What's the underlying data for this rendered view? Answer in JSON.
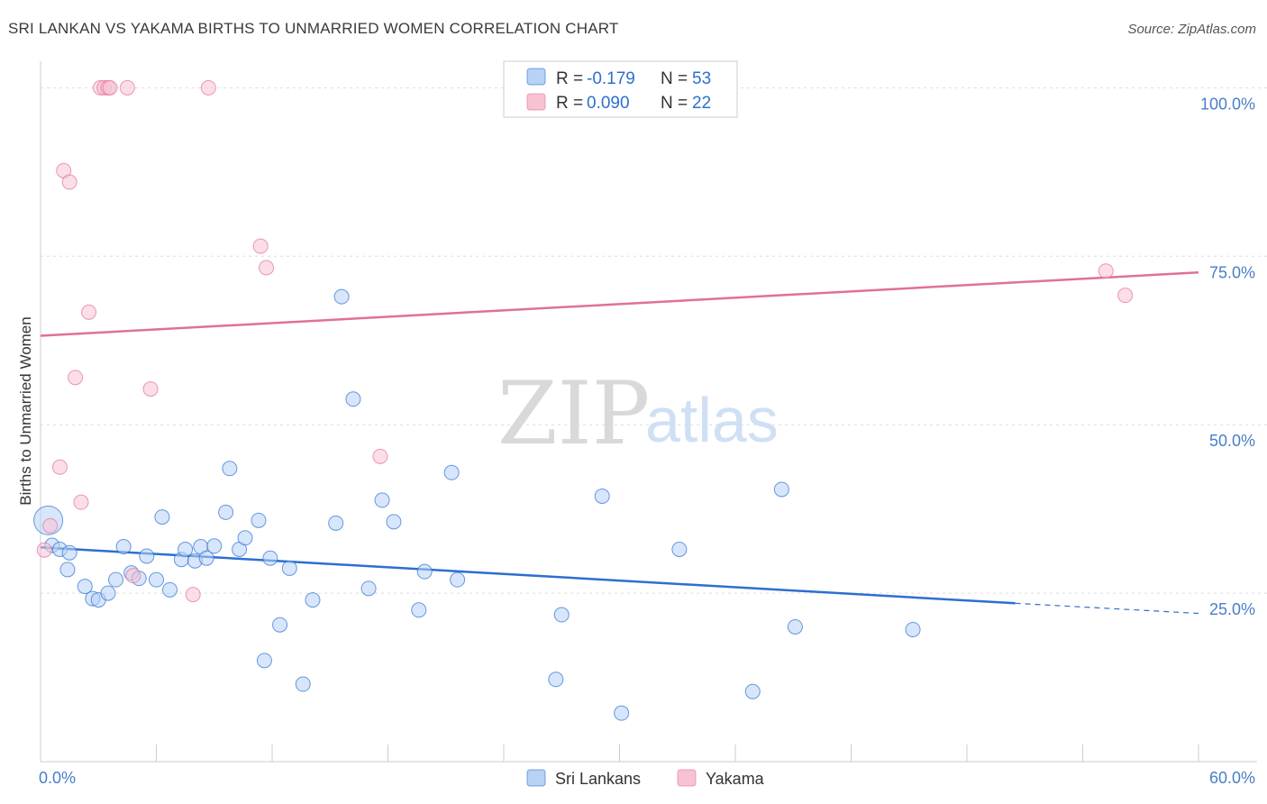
{
  "title": "SRI LANKAN VS YAKAMA BIRTHS TO UNMARRIED WOMEN CORRELATION CHART",
  "source": "Source: ZipAtlas.com",
  "watermark": {
    "zip": "ZIP",
    "atlas": "atlas"
  },
  "colors": {
    "blue": "#2c6fd0",
    "blue_fill": "#b7d2f5",
    "pink": "#e07098",
    "pink_fill": "#f7c3d3",
    "grid": "#dddddd",
    "tick_text": "#4a7ec8"
  },
  "legend": {
    "rows": [
      {
        "r_label": "R =",
        "r_value": "-0.179",
        "n_label": "N =",
        "n_value": "53"
      },
      {
        "r_label": "R =",
        "r_value": "0.090",
        "n_label": "N =",
        "n_value": "22"
      }
    ]
  },
  "bottom_legend": [
    "Sri Lankans",
    "Yakama"
  ],
  "chart_data": {
    "type": "scatter",
    "title": "SRI LANKAN VS YAKAMA BIRTHS TO UNMARRIED WOMEN CORRELATION CHART",
    "xlabel": "",
    "ylabel": "Births to Unmarried Women",
    "xlim": [
      0,
      60
    ],
    "ylim": [
      0,
      105
    ],
    "x_tick_labels": [
      "0.0%",
      "60.0%"
    ],
    "y_ticks": [
      25,
      50,
      75,
      100
    ],
    "y_tick_labels": [
      "25.0%",
      "50.0%",
      "75.0%",
      "100.0%"
    ],
    "grid": true,
    "legend_position": "top-center",
    "series": [
      {
        "name": "Sri Lankans",
        "color": "#2c6fd0",
        "r": -0.179,
        "n": 53,
        "trend": {
          "x": [
            0,
            50.5
          ],
          "y": [
            31.8,
            23.5
          ],
          "dashed_to_x": 60,
          "dashed_to_y": 22.0
        },
        "points": [
          [
            0.4,
            35.8
          ],
          [
            0.6,
            32.1
          ],
          [
            1.0,
            31.5
          ],
          [
            1.5,
            31.0
          ],
          [
            1.4,
            28.5
          ],
          [
            2.3,
            26.0
          ],
          [
            2.7,
            24.2
          ],
          [
            3.0,
            24.0
          ],
          [
            3.5,
            25.0
          ],
          [
            3.9,
            27.0
          ],
          [
            4.3,
            31.9
          ],
          [
            4.7,
            28.0
          ],
          [
            5.1,
            27.2
          ],
          [
            5.5,
            30.5
          ],
          [
            6.0,
            27.0
          ],
          [
            6.3,
            36.3
          ],
          [
            6.7,
            25.5
          ],
          [
            7.3,
            30.0
          ],
          [
            7.5,
            31.5
          ],
          [
            8.0,
            29.8
          ],
          [
            8.3,
            31.9
          ],
          [
            8.6,
            30.2
          ],
          [
            9.0,
            32.0
          ],
          [
            9.6,
            37.0
          ],
          [
            9.8,
            43.5
          ],
          [
            10.3,
            31.5
          ],
          [
            10.6,
            33.2
          ],
          [
            11.3,
            35.8
          ],
          [
            11.6,
            15.0
          ],
          [
            11.9,
            30.2
          ],
          [
            12.4,
            20.3
          ],
          [
            12.9,
            28.7
          ],
          [
            13.6,
            11.5
          ],
          [
            14.1,
            24.0
          ],
          [
            15.3,
            35.4
          ],
          [
            15.6,
            69.0
          ],
          [
            16.2,
            53.8
          ],
          [
            17.0,
            25.7
          ],
          [
            17.7,
            38.8
          ],
          [
            18.3,
            35.6
          ],
          [
            19.6,
            22.5
          ],
          [
            19.9,
            28.2
          ],
          [
            21.3,
            42.9
          ],
          [
            21.6,
            27.0
          ],
          [
            26.7,
            12.2
          ],
          [
            27.0,
            21.8
          ],
          [
            29.1,
            39.4
          ],
          [
            30.1,
            7.2
          ],
          [
            33.1,
            31.5
          ],
          [
            36.9,
            10.4
          ],
          [
            38.4,
            40.4
          ],
          [
            39.1,
            20.0
          ],
          [
            45.2,
            19.6
          ]
        ]
      },
      {
        "name": "Yakama",
        "color": "#e07098",
        "r": 0.09,
        "n": 22,
        "trend": {
          "x": [
            0,
            60
          ],
          "y": [
            63.2,
            72.6
          ]
        },
        "points": [
          [
            0.2,
            31.4
          ],
          [
            0.5,
            35.0
          ],
          [
            1.0,
            43.7
          ],
          [
            1.2,
            87.7
          ],
          [
            1.5,
            86.0
          ],
          [
            1.8,
            57.0
          ],
          [
            2.1,
            38.5
          ],
          [
            2.5,
            66.7
          ],
          [
            3.1,
            100.0
          ],
          [
            3.3,
            100.0
          ],
          [
            3.5,
            100.0
          ],
          [
            3.6,
            100.0
          ],
          [
            4.5,
            100.0
          ],
          [
            4.8,
            27.6
          ],
          [
            5.7,
            55.3
          ],
          [
            7.9,
            24.8
          ],
          [
            8.7,
            100.0
          ],
          [
            11.4,
            76.5
          ],
          [
            11.7,
            73.3
          ],
          [
            17.6,
            45.3
          ],
          [
            55.2,
            72.8
          ],
          [
            56.2,
            69.2
          ]
        ]
      }
    ]
  }
}
